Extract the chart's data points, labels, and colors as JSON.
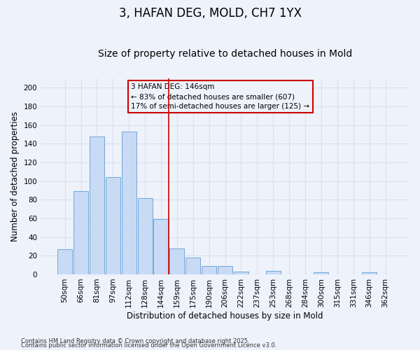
{
  "title": "3, HAFAN DEG, MOLD, CH7 1YX",
  "subtitle": "Size of property relative to detached houses in Mold",
  "xlabel": "Distribution of detached houses by size in Mold",
  "ylabel": "Number of detached properties",
  "categories": [
    "50sqm",
    "66sqm",
    "81sqm",
    "97sqm",
    "112sqm",
    "128sqm",
    "144sqm",
    "159sqm",
    "175sqm",
    "190sqm",
    "206sqm",
    "222sqm",
    "237sqm",
    "253sqm",
    "268sqm",
    "284sqm",
    "300sqm",
    "315sqm",
    "331sqm",
    "346sqm",
    "362sqm"
  ],
  "values": [
    27,
    89,
    148,
    104,
    153,
    82,
    59,
    28,
    18,
    9,
    9,
    3,
    0,
    4,
    0,
    0,
    2,
    0,
    0,
    2,
    0
  ],
  "bar_color": "#c9daf5",
  "bar_edge_color": "#6fa8d6",
  "vline_index": 7,
  "vline_color": "#cc0000",
  "annotation_title": "3 HAFAN DEG: 146sqm",
  "annotation_line1": "← 83% of detached houses are smaller (607)",
  "annotation_line2": "17% of semi-detached houses are larger (125) →",
  "annotation_box_edge": "#cc0000",
  "ylim": [
    0,
    210
  ],
  "yticks": [
    0,
    20,
    40,
    60,
    80,
    100,
    120,
    140,
    160,
    180,
    200
  ],
  "footnote1": "Contains HM Land Registry data © Crown copyright and database right 2025.",
  "footnote2": "Contains public sector information licensed under the Open Government Licence v3.0.",
  "background_color": "#eef2fb",
  "grid_color": "#d8e0f0",
  "title_fontsize": 12,
  "subtitle_fontsize": 10,
  "axis_label_fontsize": 8.5,
  "tick_fontsize": 7.5,
  "footnote_fontsize": 6,
  "annotation_fontsize": 7.5
}
